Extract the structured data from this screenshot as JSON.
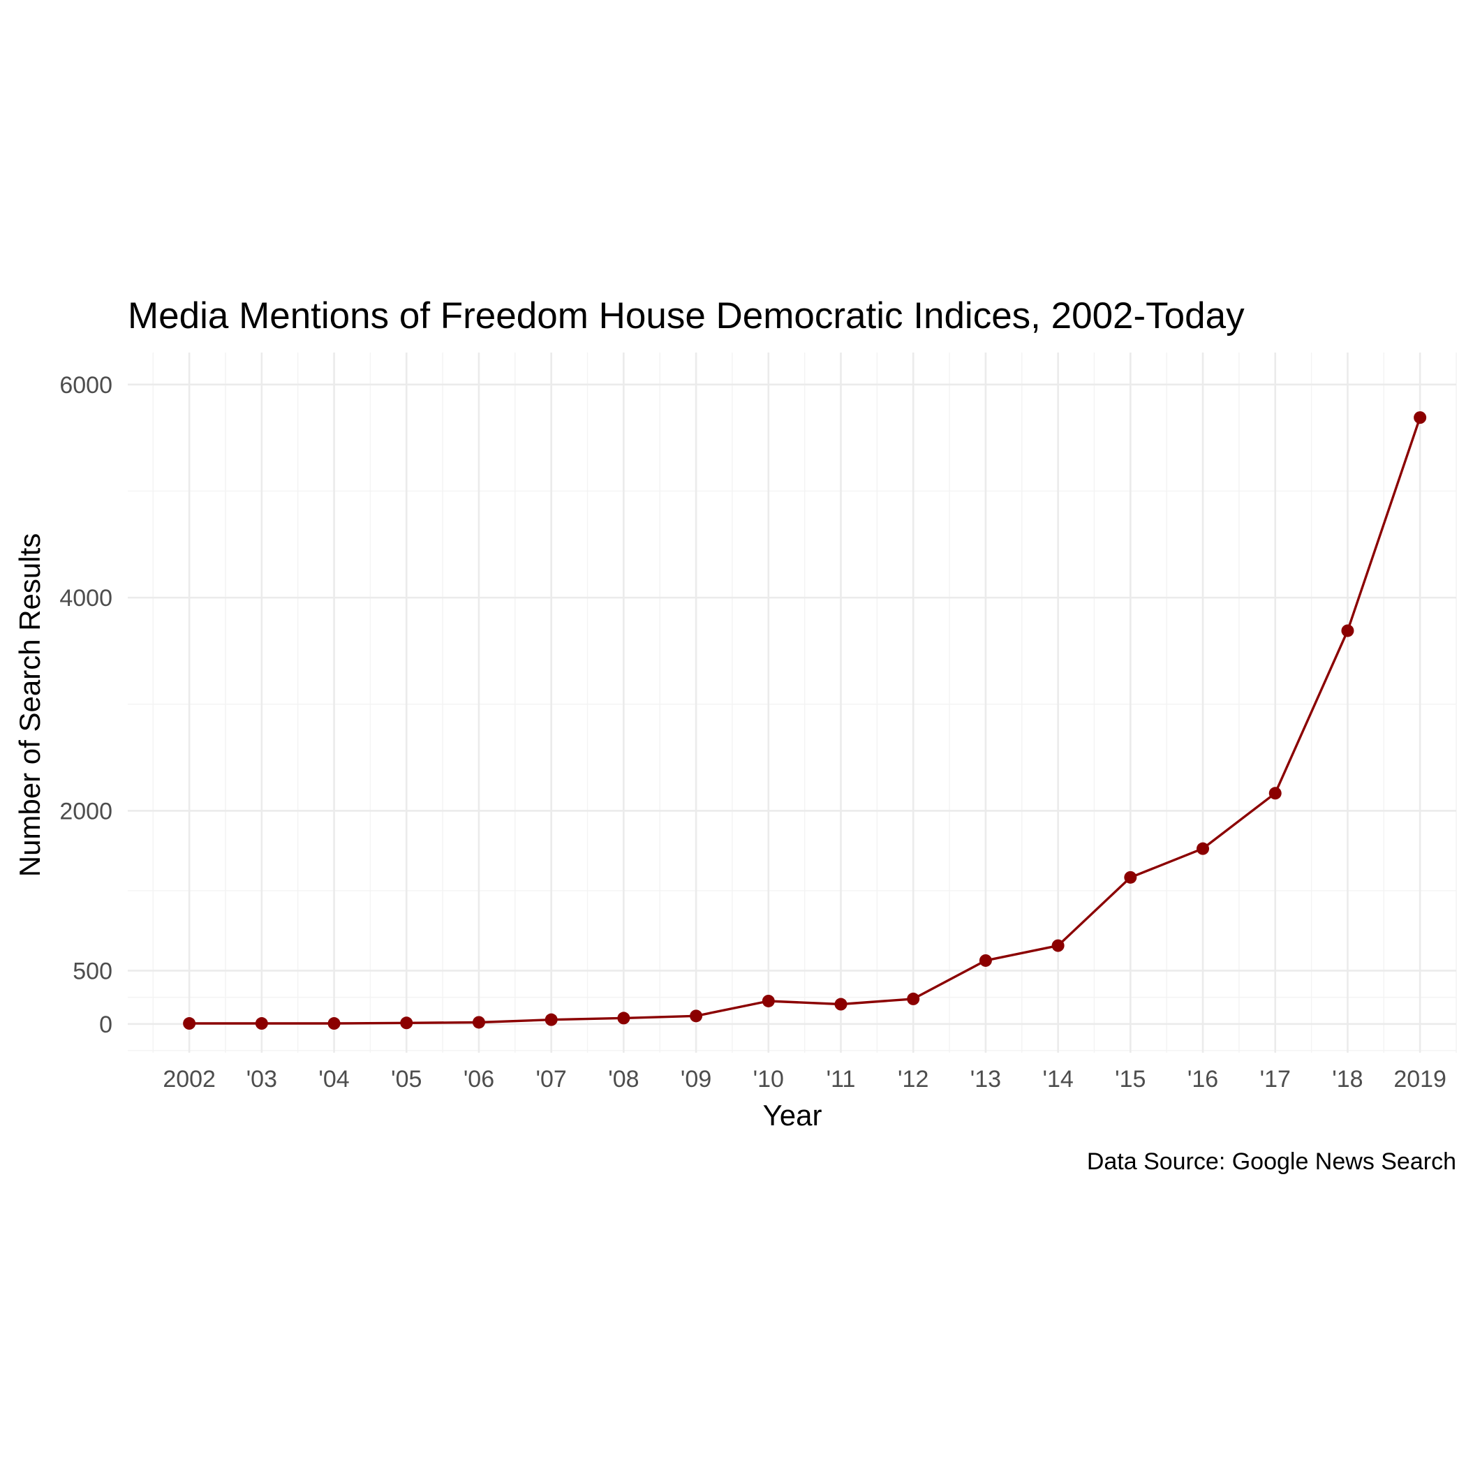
{
  "chart_data": {
    "type": "line",
    "title": "Media Mentions of Freedom House Democratic Indices, 2002-Today",
    "xlabel": "Year",
    "ylabel": "Number of Search Results",
    "caption": "Data Source: Google News Search",
    "x": [
      2002,
      2003,
      2004,
      2005,
      2006,
      2007,
      2008,
      2009,
      2010,
      2011,
      2012,
      2013,
      2014,
      2015,
      2016,
      2017,
      2018,
      2019
    ],
    "x_tick_labels": [
      "2002",
      "'03",
      "'04",
      "'05",
      "'06",
      "'07",
      "'08",
      "'09",
      "'10",
      "'11",
      "'12",
      "'13",
      "'14",
      "'15",
      "'16",
      "'17",
      "'18",
      "2019"
    ],
    "y_ticks": [
      0,
      500,
      2000,
      4000,
      6000
    ],
    "series": [
      {
        "values": [
          5,
          5,
          5,
          10,
          15,
          40,
          55,
          75,
          215,
          185,
          235,
          595,
          735,
          1375,
          1645,
          2165,
          3690,
          5690
        ]
      }
    ],
    "xlim": [
      2001.15,
      2019.5
    ],
    "ylim": [
      -270,
      6300
    ],
    "grid": true,
    "legend": "none",
    "line_color": "#8b0000",
    "point_color": "#8b0000"
  }
}
